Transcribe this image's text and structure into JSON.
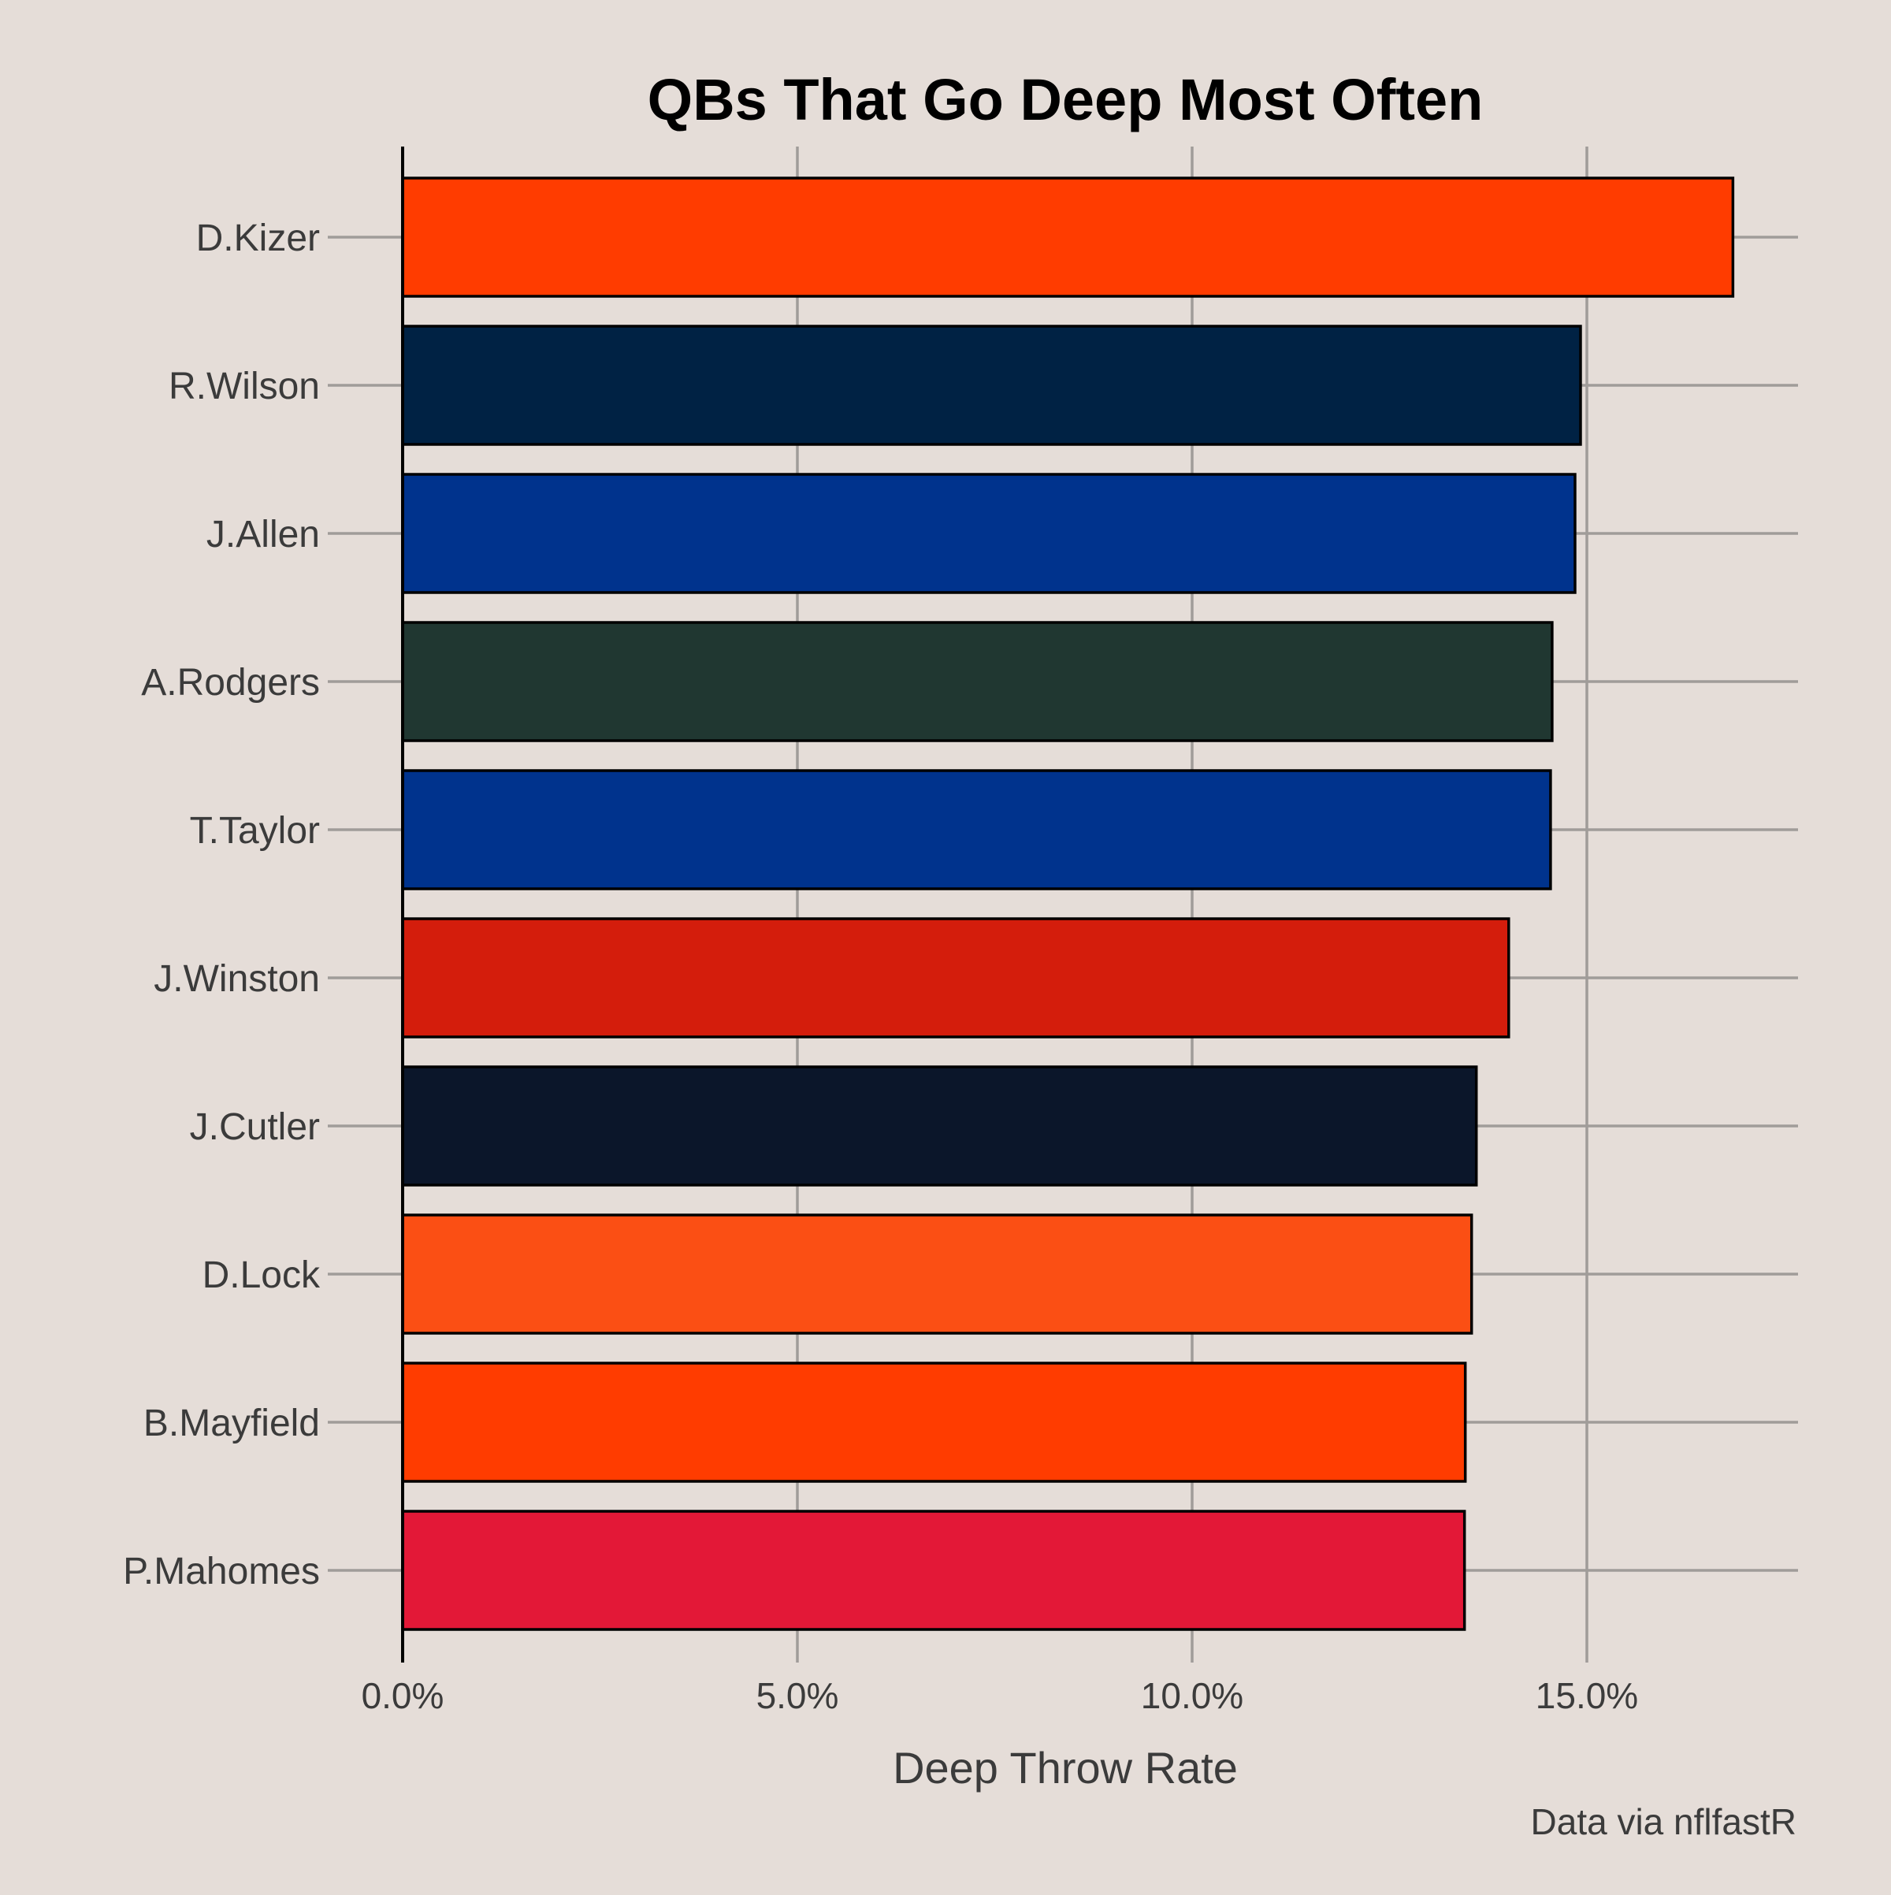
{
  "chart_data": {
    "type": "bar",
    "orientation": "horizontal",
    "title": "QBs That Go Deep Most Often",
    "xlabel": "Deep Throw Rate",
    "ylabel": "",
    "caption": "Data via nflfastR",
    "xlim": [
      0,
      17.7
    ],
    "xticks": [
      0,
      5,
      10,
      15
    ],
    "xtick_labels": [
      "0.0%",
      "5.0%",
      "10.0%",
      "15.0%"
    ],
    "grid": true,
    "categories": [
      "D.Kizer",
      "R.Wilson",
      "J.Allen",
      "A.Rodgers",
      "T.Taylor",
      "J.Winston",
      "J.Cutler",
      "D.Lock",
      "B.Mayfield",
      "P.Mahomes"
    ],
    "values": [
      16.85,
      14.92,
      14.85,
      14.56,
      14.54,
      14.01,
      13.6,
      13.54,
      13.46,
      13.45
    ],
    "value_unit": "%",
    "bar_colors": [
      "#ff3c00",
      "#002244",
      "#00338d",
      "#203731",
      "#00338d",
      "#d41d0c",
      "#0b162a",
      "#fb4f14",
      "#ff3c00",
      "#e31837"
    ],
    "bar_outline_color": "#000000",
    "background_color": "#e5ddd8",
    "grid_color": "#a09c99"
  }
}
